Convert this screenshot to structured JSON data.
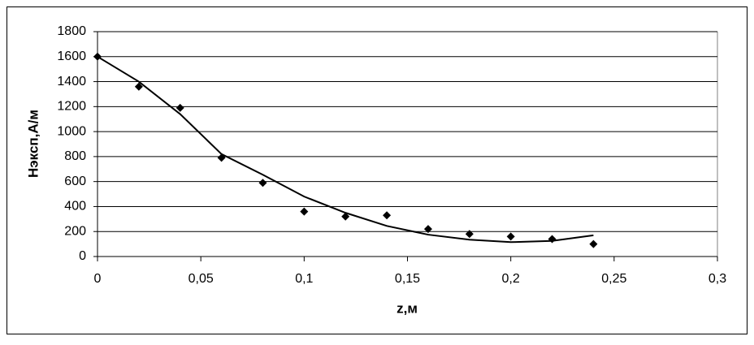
{
  "chart_data": {
    "type": "scatter",
    "x_label": "z,м",
    "y_label": "Нэксп,А/м",
    "xlim": [
      0,
      0.3
    ],
    "xticks": [
      0,
      {
        "value": 0.05,
        "label": "0,05"
      },
      {
        "value": 0.1,
        "label": "0,1"
      },
      {
        "value": 0.15,
        "label": "0,15"
      },
      {
        "value": 0.2,
        "label": "0,2"
      },
      {
        "value": 0.25,
        "label": "0,25"
      },
      {
        "value": 0.3,
        "label": "0,3"
      }
    ],
    "ylim": [
      0,
      1800
    ],
    "yticks": [
      0,
      200,
      400,
      600,
      800,
      1000,
      1200,
      1400,
      1600,
      1800
    ],
    "grid": true,
    "series": [
      {
        "style": "markers",
        "color": "#000000",
        "x": [
          0,
          0.02,
          0.04,
          0.06,
          0.08,
          0.1,
          0.12,
          0.14,
          0.16,
          0.18,
          0.2,
          0.22,
          0.24
        ],
        "values": [
          1600,
          1360,
          1190,
          790,
          590,
          360,
          320,
          330,
          220,
          180,
          160,
          140,
          100
        ]
      },
      {
        "style": "line",
        "color": "#000000",
        "x": [
          0,
          0.02,
          0.04,
          0.06,
          0.08,
          0.1,
          0.12,
          0.14,
          0.16,
          0.18,
          0.2,
          0.22,
          0.24
        ],
        "values": [
          1600,
          1400,
          1140,
          820,
          655,
          480,
          350,
          245,
          175,
          135,
          115,
          125,
          170
        ]
      }
    ]
  }
}
